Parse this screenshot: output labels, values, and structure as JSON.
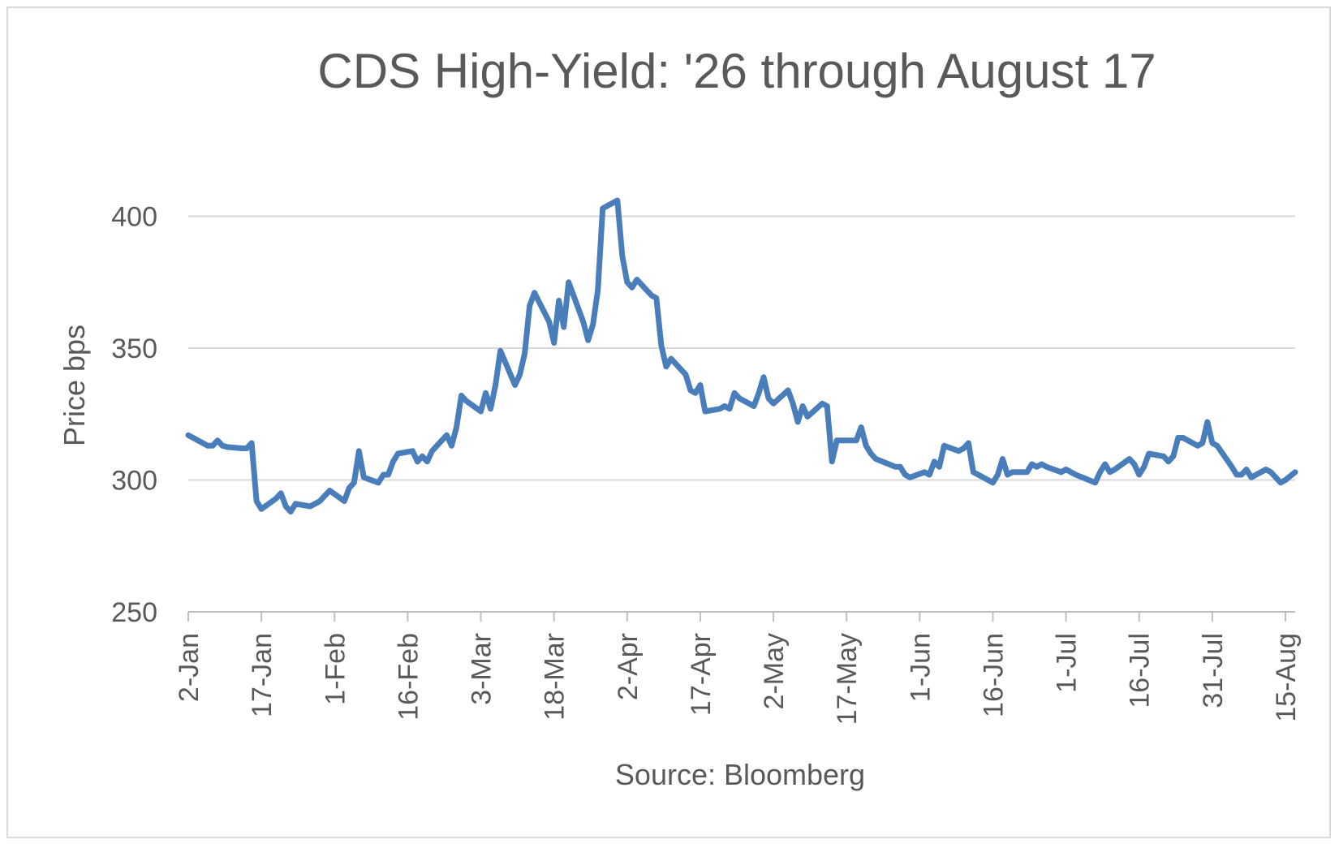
{
  "chart_data": {
    "type": "line",
    "title": "CDS High-Yield: '26 through August 17",
    "ylabel": "Price bps",
    "xlabel": "Source: Bloomberg",
    "ylim": [
      250,
      410
    ],
    "yticks": [
      250,
      300,
      350,
      400
    ],
    "ytick_labels": [
      "250",
      "300",
      "350",
      "400"
    ],
    "xlim": [
      "2-Jan",
      "17-Aug"
    ],
    "xtick_labels": [
      "2-Jan",
      "17-Jan",
      "1-Feb",
      "16-Feb",
      "3-Mar",
      "18-Mar",
      "2-Apr",
      "17-Apr",
      "2-May",
      "17-May",
      "1-Jun",
      "16-Jun",
      "1-Jul",
      "16-Jul",
      "31-Jul",
      "15-Aug"
    ],
    "grid": true,
    "legend": "none",
    "series": [
      {
        "color": "#4a7ebb",
        "points": [
          [
            "2-Jan",
            317
          ],
          [
            "3-Jan",
            316
          ],
          [
            "4-Jan",
            315
          ],
          [
            "5-Jan",
            314
          ],
          [
            "6-Jan",
            313
          ],
          [
            "7-Jan",
            313
          ],
          [
            "8-Jan",
            315
          ],
          [
            "9-Jan",
            313
          ],
          [
            "10-Jan",
            312.5
          ],
          [
            "13-Jan",
            312
          ],
          [
            "14-Jan",
            312
          ],
          [
            "15-Jan",
            314
          ],
          [
            "16-Jan",
            292
          ],
          [
            "17-Jan",
            289
          ],
          [
            "20-Jan",
            293
          ],
          [
            "21-Jan",
            295
          ],
          [
            "22-Jan",
            290
          ],
          [
            "23-Jan",
            288
          ],
          [
            "24-Jan",
            291
          ],
          [
            "27-Jan",
            290
          ],
          [
            "28-Jan",
            291
          ],
          [
            "29-Jan",
            292
          ],
          [
            "30-Jan",
            294
          ],
          [
            "31-Jan",
            296
          ],
          [
            "3-Feb",
            292
          ],
          [
            "4-Feb",
            297
          ],
          [
            "5-Feb",
            299
          ],
          [
            "6-Feb",
            311
          ],
          [
            "7-Feb",
            301
          ],
          [
            "10-Feb",
            299
          ],
          [
            "11-Feb",
            302
          ],
          [
            "12-Feb",
            302
          ],
          [
            "13-Feb",
            307
          ],
          [
            "14-Feb",
            310
          ],
          [
            "17-Feb",
            311
          ],
          [
            "18-Feb",
            307
          ],
          [
            "19-Feb",
            309
          ],
          [
            "20-Feb",
            307
          ],
          [
            "21-Feb",
            311
          ],
          [
            "24-Feb",
            317
          ],
          [
            "25-Feb",
            313
          ],
          [
            "26-Feb",
            320
          ],
          [
            "27-Feb",
            332
          ],
          [
            "28-Feb",
            330
          ],
          [
            "3-Mar",
            326
          ],
          [
            "4-Mar",
            333
          ],
          [
            "5-Mar",
            327
          ],
          [
            "6-Mar",
            336
          ],
          [
            "7-Mar",
            349
          ],
          [
            "10-Mar",
            336
          ],
          [
            "11-Mar",
            340
          ],
          [
            "12-Mar",
            348
          ],
          [
            "13-Mar",
            366
          ],
          [
            "14-Mar",
            371
          ],
          [
            "17-Mar",
            360
          ],
          [
            "18-Mar",
            352
          ],
          [
            "19-Mar",
            368
          ],
          [
            "20-Mar",
            358
          ],
          [
            "21-Mar",
            375
          ],
          [
            "24-Mar",
            360
          ],
          [
            "25-Mar",
            353
          ],
          [
            "26-Mar",
            359
          ],
          [
            "27-Mar",
            372
          ],
          [
            "28-Mar",
            403
          ],
          [
            "31-Mar",
            406
          ],
          [
            "1-Apr",
            385
          ],
          [
            "2-Apr",
            375
          ],
          [
            "3-Apr",
            373
          ],
          [
            "4-Apr",
            376
          ],
          [
            "7-Apr",
            370
          ],
          [
            "8-Apr",
            369
          ],
          [
            "9-Apr",
            351
          ],
          [
            "10-Apr",
            343
          ],
          [
            "11-Apr",
            346
          ],
          [
            "14-Apr",
            340
          ],
          [
            "15-Apr",
            334
          ],
          [
            "16-Apr",
            333
          ],
          [
            "17-Apr",
            336
          ],
          [
            "18-Apr",
            326
          ],
          [
            "21-Apr",
            327
          ],
          [
            "22-Apr",
            328
          ],
          [
            "23-Apr",
            327
          ],
          [
            "24-Apr",
            333
          ],
          [
            "25-Apr",
            331
          ],
          [
            "28-Apr",
            328
          ],
          [
            "29-Apr",
            333
          ],
          [
            "30-Apr",
            339
          ],
          [
            "1-May",
            331
          ],
          [
            "2-May",
            329
          ],
          [
            "5-May",
            334
          ],
          [
            "6-May",
            329
          ],
          [
            "7-May",
            322
          ],
          [
            "8-May",
            328
          ],
          [
            "9-May",
            324
          ],
          [
            "12-May",
            329
          ],
          [
            "13-May",
            328
          ],
          [
            "14-May",
            307
          ],
          [
            "15-May",
            315
          ],
          [
            "16-May",
            315
          ],
          [
            "19-May",
            315
          ],
          [
            "20-May",
            320
          ],
          [
            "21-May",
            313
          ],
          [
            "22-May",
            310
          ],
          [
            "23-May",
            308
          ],
          [
            "27-May",
            305
          ],
          [
            "28-May",
            305
          ],
          [
            "29-May",
            302
          ],
          [
            "30-May",
            301
          ],
          [
            "2-Jun",
            303
          ],
          [
            "3-Jun",
            302
          ],
          [
            "4-Jun",
            307
          ],
          [
            "5-Jun",
            305
          ],
          [
            "6-Jun",
            313
          ],
          [
            "9-Jun",
            311
          ],
          [
            "10-Jun",
            312
          ],
          [
            "11-Jun",
            314
          ],
          [
            "12-Jun",
            303
          ],
          [
            "13-Jun",
            302
          ],
          [
            "16-Jun",
            299
          ],
          [
            "17-Jun",
            302
          ],
          [
            "18-Jun",
            308
          ],
          [
            "19-Jun",
            302
          ],
          [
            "20-Jun",
            303
          ],
          [
            "23-Jun",
            303
          ],
          [
            "24-Jun",
            306
          ],
          [
            "25-Jun",
            305
          ],
          [
            "26-Jun",
            306
          ],
          [
            "27-Jun",
            305
          ],
          [
            "30-Jun",
            303
          ],
          [
            "1-Jul",
            304
          ],
          [
            "2-Jul",
            303
          ],
          [
            "3-Jul",
            302
          ],
          [
            "7-Jul",
            299
          ],
          [
            "8-Jul",
            303
          ],
          [
            "9-Jul",
            306
          ],
          [
            "10-Jul",
            303
          ],
          [
            "11-Jul",
            304
          ],
          [
            "14-Jul",
            308
          ],
          [
            "15-Jul",
            306
          ],
          [
            "16-Jul",
            302
          ],
          [
            "17-Jul",
            305
          ],
          [
            "18-Jul",
            310
          ],
          [
            "21-Jul",
            309
          ],
          [
            "22-Jul",
            307
          ],
          [
            "23-Jul",
            309
          ],
          [
            "24-Jul",
            316
          ],
          [
            "25-Jul",
            316
          ],
          [
            "28-Jul",
            313
          ],
          [
            "29-Jul",
            314
          ],
          [
            "30-Jul",
            322
          ],
          [
            "31-Jul",
            314
          ],
          [
            "1-Aug",
            313
          ],
          [
            "4-Aug",
            305
          ],
          [
            "5-Aug",
            302
          ],
          [
            "6-Aug",
            302
          ],
          [
            "7-Aug",
            304
          ],
          [
            "8-Aug",
            301
          ],
          [
            "11-Aug",
            304
          ],
          [
            "12-Aug",
            303
          ],
          [
            "13-Aug",
            301
          ],
          [
            "14-Aug",
            299
          ],
          [
            "15-Aug",
            300
          ],
          [
            "17-Aug",
            303
          ]
        ]
      }
    ]
  }
}
